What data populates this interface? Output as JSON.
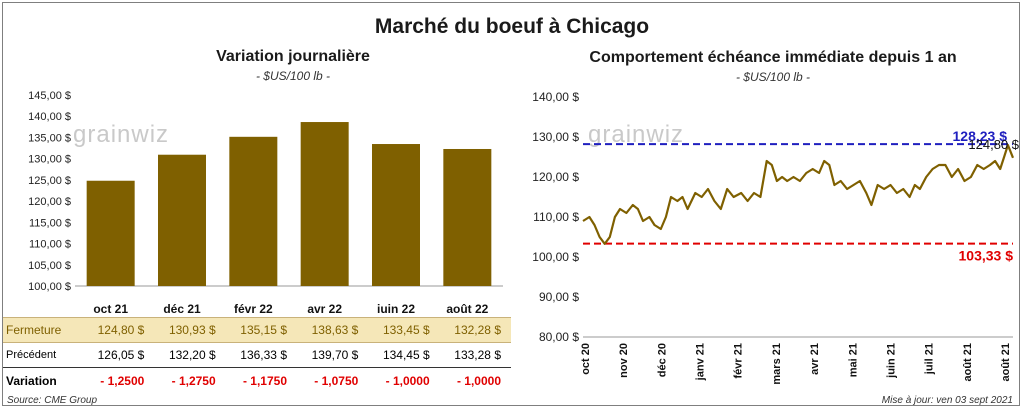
{
  "main_title": "Marché du boeuf à Chicago",
  "left_chart": {
    "title": "Variation  journalière",
    "unit": "- $US/100 lb -",
    "bar_color": "#7f6000",
    "y_ticks": [
      "145,00 $",
      "140,00 $",
      "135,00 $",
      "130,00 $",
      "125,00 $",
      "120,00 $",
      "115,00 $",
      "110,00 $",
      "105,00 $",
      "100,00 $"
    ]
  },
  "right_chart": {
    "title": "Comportement  échéance immédiate depuis 1 an",
    "unit": "- $US/100 lb -",
    "line_color": "#7f6000",
    "high_color": "#1f1fbf",
    "low_color": "#e00000",
    "high_label": "128,23 $",
    "last_label": "124,80 $",
    "low_label": "103,33 $",
    "y_ticks": [
      "140,00 $",
      "130,00 $",
      "120,00 $",
      "110,00 $",
      "100,00 $",
      "90,00 $",
      "80,00 $"
    ],
    "x_ticks": [
      "oct 20",
      "nov 20",
      "déc 20",
      "janv 21",
      "févr 21",
      "mars 21",
      "avr 21",
      "mai 21",
      "juin 21",
      "juil 21",
      "août 21",
      "août 21"
    ]
  },
  "watermark": "grainwiz",
  "table": {
    "row_labels": {
      "fermeture": "Fermeture",
      "precedent": "Précédent",
      "variation": "Variation"
    },
    "fermeture": [
      "124,80  $",
      "130,93  $",
      "135,15  $",
      "138,63  $",
      "133,45  $",
      "132,28  $"
    ],
    "precedent": [
      "126,05  $",
      "132,20  $",
      "136,33  $",
      "139,70  $",
      "134,45  $",
      "133,28  $"
    ],
    "variation": [
      "- 1,2500",
      "- 1,2750",
      "- 1,1750",
      "- 1,0750",
      "- 1,0000",
      "- 1,0000"
    ],
    "variation_color": "#e00000"
  },
  "footer": {
    "source": "Source: CME Group",
    "updated": "Mise à jour: ven 03 sept 2021"
  },
  "chart_data": [
    {
      "type": "bar",
      "title": "Variation  journalière",
      "ylabel": "- $US/100 lb -",
      "categories": [
        "oct 21",
        "déc 21",
        "févr 22",
        "avr 22",
        "juin 22",
        "août 22"
      ],
      "values": [
        124.8,
        130.93,
        135.15,
        138.63,
        133.45,
        132.28
      ],
      "ylim": [
        100,
        145
      ],
      "grid": false
    },
    {
      "type": "line",
      "title": "Comportement  échéance immédiate depuis 1 an",
      "ylabel": "- $US/100 lb -",
      "ylim": [
        80,
        140
      ],
      "grid": false,
      "x_range": [
        "2020-10-01",
        "2021-09-03"
      ],
      "series": [
        {
          "x": [
            "2020-10-01",
            "2020-10-06",
            "2020-10-10",
            "2020-10-14",
            "2020-10-18",
            "2020-10-22",
            "2020-10-26",
            "2020-10-30",
            "2020-11-04",
            "2020-11-09",
            "2020-11-13",
            "2020-11-17",
            "2020-11-22",
            "2020-11-26",
            "2020-12-01",
            "2020-12-05",
            "2020-12-09",
            "2020-12-14",
            "2020-12-18",
            "2020-12-22",
            "2020-12-28",
            "2021-01-02",
            "2021-01-07",
            "2021-01-12",
            "2021-01-17",
            "2021-01-22",
            "2021-01-27",
            "2021-02-02",
            "2021-02-07",
            "2021-02-12",
            "2021-02-17",
            "2021-02-22",
            "2021-02-26",
            "2021-03-02",
            "2021-03-06",
            "2021-03-10",
            "2021-03-15",
            "2021-03-20",
            "2021-03-25",
            "2021-03-30",
            "2021-04-04",
            "2021-04-08",
            "2021-04-12",
            "2021-04-16",
            "2021-04-21",
            "2021-04-26",
            "2021-05-01",
            "2021-05-06",
            "2021-05-11",
            "2021-05-15",
            "2021-05-20",
            "2021-05-25",
            "2021-05-30",
            "2021-06-04",
            "2021-06-09",
            "2021-06-14",
            "2021-06-18",
            "2021-06-22",
            "2021-06-27",
            "2021-07-02",
            "2021-07-07",
            "2021-07-12",
            "2021-07-17",
            "2021-07-22",
            "2021-07-27",
            "2021-08-01",
            "2021-08-06",
            "2021-08-11",
            "2021-08-16",
            "2021-08-20",
            "2021-08-24",
            "2021-08-27",
            "2021-08-30",
            "2021-09-03"
          ],
          "values": [
            109,
            110,
            108,
            105,
            103.3,
            105,
            110,
            112,
            111,
            113,
            112,
            109,
            110,
            108,
            107,
            110,
            115,
            114,
            115,
            112,
            116,
            115,
            117,
            114,
            112,
            117,
            115,
            116,
            114,
            116,
            115,
            124,
            123,
            119,
            120,
            119,
            120,
            119,
            121,
            122,
            121,
            124,
            123,
            118,
            119,
            117,
            118,
            119,
            116,
            113,
            118,
            117,
            118,
            116,
            117,
            115,
            118,
            117,
            120,
            122,
            123,
            123,
            120,
            122,
            119,
            120,
            123,
            122,
            123,
            124,
            122,
            125,
            128,
            124.8
          ]
        }
      ],
      "reference_lines": [
        {
          "label": "128,23 $",
          "y": 128.23
        },
        {
          "label": "103,33 $",
          "y": 103.33
        }
      ],
      "last_value_label": "124,80 $"
    }
  ]
}
